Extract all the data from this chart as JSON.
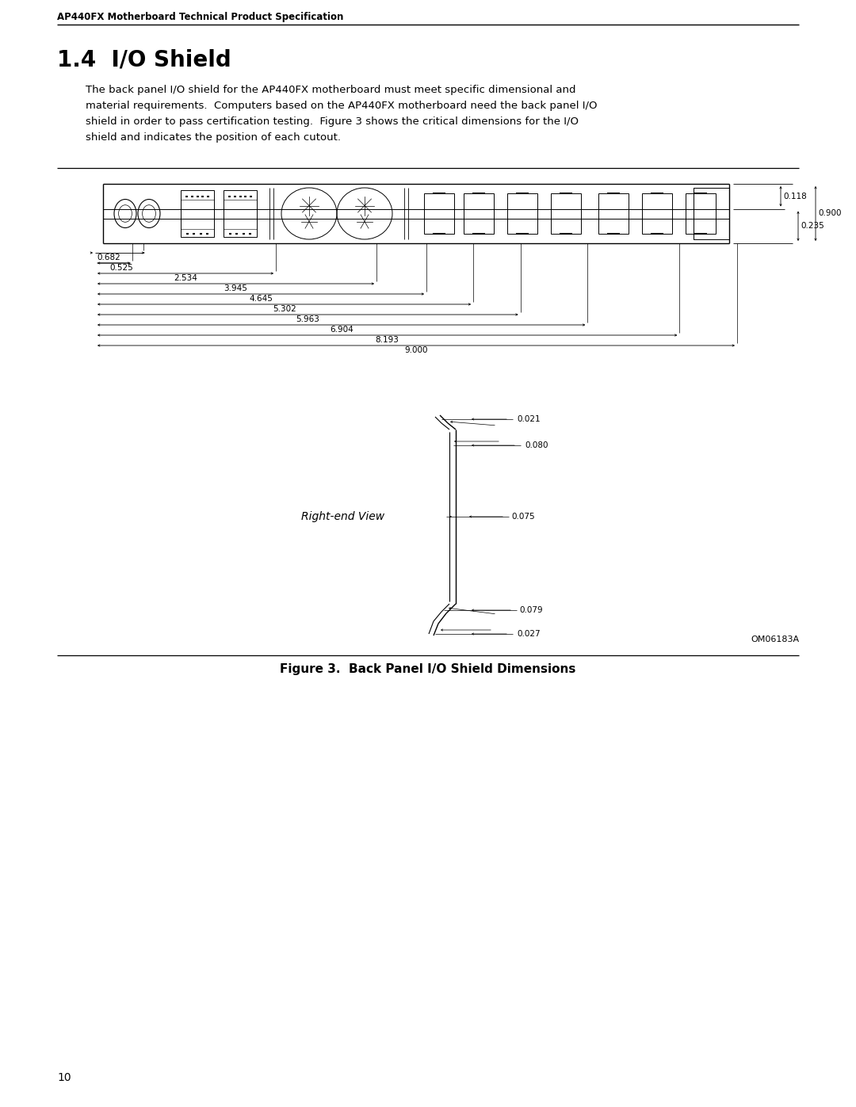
{
  "header": "AP440FX Motherboard Technical Product Specification",
  "section_title": "1.4  I/O Shield",
  "body_text": "The back panel I/O shield for the AP440FX motherboard must meet specific dimensional and\nmaterial requirements.  Computers based on the AP440FX motherboard need the back panel I/O\nshield in order to pass certification testing.  Figure 3 shows the critical dimensions for the I/O\nshield and indicates the position of each cutout.",
  "figure_caption": "Figure 3.  Back Panel I/O Shield Dimensions",
  "figure_id": "OM06183A",
  "page_number": "10",
  "bg_color": "#ffffff",
  "text_color": "#000000",
  "dim_0118": "0.118",
  "dim_0235": "0.235",
  "dim_0900": "0.900",
  "left_dims": [
    "0.682",
    "0.525",
    "2.534",
    "3.945",
    "4.645",
    "5.302",
    "5.963",
    "6.904",
    "8.193",
    "9.000"
  ],
  "left_dim_vals": [
    0.682,
    0.525,
    2.534,
    3.945,
    4.645,
    5.302,
    5.963,
    6.904,
    8.193,
    9.0
  ],
  "right_end_dims": [
    "0.021",
    "0.080",
    "0.075",
    "0.079",
    "0.027"
  ],
  "right_end_label": "Right-end View"
}
